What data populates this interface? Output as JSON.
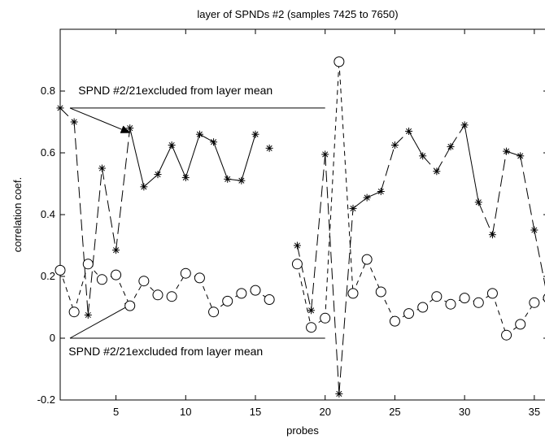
{
  "chart_data": {
    "type": "line",
    "title": "layer of SPNDs #2 (samples 7425 to 7650)",
    "xlabel": "probes",
    "ylabel": "correlation coef.",
    "xlim": [
      1,
      36
    ],
    "ylim": [
      -0.2,
      1.0
    ],
    "xticks": [
      5,
      10,
      15,
      20,
      25,
      30,
      35
    ],
    "yticks": [
      -0.2,
      0,
      0.2,
      0.4,
      0.6,
      0.8
    ],
    "ytick_labels": [
      "-0.2",
      "0",
      "0.2",
      "0.4",
      "0.6",
      "0.8"
    ],
    "grid": false,
    "series": [
      {
        "marker": "star",
        "x": [
          1,
          2,
          3,
          4,
          5,
          6,
          7,
          8,
          9,
          10,
          11,
          12,
          13,
          14,
          15,
          16,
          18,
          19,
          20,
          21,
          22,
          23,
          24,
          25,
          26,
          27,
          28,
          29,
          30,
          31,
          32,
          33,
          34,
          35,
          36
        ],
        "y": [
          0.745,
          0.7,
          0.075,
          0.55,
          0.285,
          0.68,
          0.49,
          0.53,
          0.625,
          0.52,
          0.66,
          0.635,
          0.515,
          0.51,
          0.66,
          0.615,
          0.3,
          0.09,
          0.595,
          -0.18,
          0.42,
          0.455,
          0.475,
          0.625,
          0.67,
          0.59,
          0.54,
          0.62,
          0.69,
          0.44,
          0.335,
          0.605,
          0.59,
          0.35,
          0.12
        ],
        "segments": [
          {
            "from": 1,
            "to": 2,
            "style": "longdash"
          },
          {
            "from": 2,
            "to": 3,
            "style": "longdash"
          },
          {
            "from": 3,
            "to": 4,
            "style": "longdash"
          },
          {
            "from": 4,
            "to": 5,
            "style": "longdash"
          },
          {
            "from": 5,
            "to": 6,
            "style": "longdash"
          },
          {
            "from": 6,
            "to": 7,
            "style": "solid"
          },
          {
            "from": 7,
            "to": 8,
            "style": "solid"
          },
          {
            "from": 8,
            "to": 9,
            "style": "solid"
          },
          {
            "from": 9,
            "to": 10,
            "style": "solid"
          },
          {
            "from": 10,
            "to": 11,
            "style": "solid"
          },
          {
            "from": 11,
            "to": 12,
            "style": "solid"
          },
          {
            "from": 12,
            "to": 13,
            "style": "solid"
          },
          {
            "from": 13,
            "to": 14,
            "style": "solid"
          },
          {
            "from": 14,
            "to": 15,
            "style": "solid"
          },
          {
            "from": 18,
            "to": 19,
            "style": "longdash"
          },
          {
            "from": 19,
            "to": 20,
            "style": "longdash"
          },
          {
            "from": 20,
            "to": 21,
            "style": "longdash"
          },
          {
            "from": 21,
            "to": 22,
            "style": "longdash"
          },
          {
            "from": 22,
            "to": 23,
            "style": "solid"
          },
          {
            "from": 23,
            "to": 24,
            "style": "solid"
          },
          {
            "from": 24,
            "to": 25,
            "style": "longdash"
          },
          {
            "from": 25,
            "to": 26,
            "style": "longdash"
          },
          {
            "from": 26,
            "to": 27,
            "style": "solid"
          },
          {
            "from": 27,
            "to": 28,
            "style": "longdash"
          },
          {
            "from": 28,
            "to": 29,
            "style": "longdash"
          },
          {
            "from": 29,
            "to": 30,
            "style": "longdash"
          },
          {
            "from": 30,
            "to": 31,
            "style": "solid"
          },
          {
            "from": 31,
            "to": 32,
            "style": "longdash"
          },
          {
            "from": 32,
            "to": 33,
            "style": "longdash"
          },
          {
            "from": 33,
            "to": 34,
            "style": "solid"
          },
          {
            "from": 34,
            "to": 35,
            "style": "longdash"
          },
          {
            "from": 35,
            "to": 36,
            "style": "longdash"
          }
        ]
      },
      {
        "marker": "circle",
        "x": [
          1,
          2,
          3,
          4,
          5,
          6,
          7,
          8,
          9,
          10,
          11,
          12,
          13,
          14,
          15,
          16,
          18,
          19,
          20,
          21,
          22,
          23,
          24,
          25,
          26,
          27,
          28,
          29,
          30,
          31,
          32,
          33,
          34,
          35,
          36
        ],
        "y": [
          0.22,
          0.085,
          0.24,
          0.19,
          0.205,
          0.105,
          0.185,
          0.14,
          0.135,
          0.21,
          0.195,
          0.085,
          0.12,
          0.145,
          0.155,
          0.125,
          0.24,
          0.035,
          0.065,
          0.895,
          0.145,
          0.255,
          0.15,
          0.055,
          0.08,
          0.1,
          0.135,
          0.11,
          0.13,
          0.115,
          0.145,
          0.01,
          0.045,
          0.115,
          0.13
        ],
        "segments": [
          {
            "from": 1,
            "to": 2,
            "style": "dash"
          },
          {
            "from": 2,
            "to": 3,
            "style": "dash"
          },
          {
            "from": 3,
            "to": 4,
            "style": "dash"
          },
          {
            "from": 4,
            "to": 5,
            "style": "dash"
          },
          {
            "from": 5,
            "to": 6,
            "style": "dash"
          },
          {
            "from": 6,
            "to": 7,
            "style": "dash"
          },
          {
            "from": 7,
            "to": 8,
            "style": "dash"
          },
          {
            "from": 8,
            "to": 9,
            "style": "dash"
          },
          {
            "from": 9,
            "to": 10,
            "style": "dash"
          },
          {
            "from": 10,
            "to": 11,
            "style": "dash"
          },
          {
            "from": 11,
            "to": 12,
            "style": "dash"
          },
          {
            "from": 12,
            "to": 13,
            "style": "dash"
          },
          {
            "from": 13,
            "to": 14,
            "style": "dash"
          },
          {
            "from": 14,
            "to": 15,
            "style": "dash"
          },
          {
            "from": 15,
            "to": 16,
            "style": "dash"
          },
          {
            "from": 18,
            "to": 19,
            "style": "dash"
          },
          {
            "from": 19,
            "to": 20,
            "style": "dash"
          },
          {
            "from": 20,
            "to": 21,
            "style": "dash"
          },
          {
            "from": 21,
            "to": 22,
            "style": "dash"
          },
          {
            "from": 22,
            "to": 23,
            "style": "dash"
          },
          {
            "from": 23,
            "to": 24,
            "style": "dash"
          },
          {
            "from": 24,
            "to": 25,
            "style": "dash"
          },
          {
            "from": 25,
            "to": 26,
            "style": "dash"
          },
          {
            "from": 26,
            "to": 27,
            "style": "dash"
          },
          {
            "from": 27,
            "to": 28,
            "style": "dash"
          },
          {
            "from": 28,
            "to": 29,
            "style": "dash"
          },
          {
            "from": 29,
            "to": 30,
            "style": "dash"
          },
          {
            "from": 30,
            "to": 31,
            "style": "dash"
          },
          {
            "from": 31,
            "to": 32,
            "style": "dash"
          },
          {
            "from": 32,
            "to": 33,
            "style": "dash"
          },
          {
            "from": 33,
            "to": 34,
            "style": "dash"
          },
          {
            "from": 34,
            "to": 35,
            "style": "dash"
          },
          {
            "from": 35,
            "to": 36,
            "style": "dash"
          }
        ]
      }
    ],
    "annotations": [
      {
        "text": "SPND #2/21excluded from layer mean",
        "text_x": 2.3,
        "text_y": 0.79,
        "rule": [
          [
            1.7,
            0.745
          ],
          [
            20,
            0.745
          ]
        ],
        "arrow_from": [
          1.7,
          0.745
        ],
        "arrow_to": [
          6,
          0.665
        ]
      },
      {
        "text": "SPND #2/21excluded from layer mean",
        "text_x": 1.6,
        "text_y": -0.055,
        "rule": [
          [
            1.7,
            0.0
          ],
          [
            20,
            0.0
          ]
        ],
        "arrow_from": [
          1.7,
          0.0
        ],
        "arrow_to": [
          6.3,
          0.115
        ]
      }
    ]
  }
}
